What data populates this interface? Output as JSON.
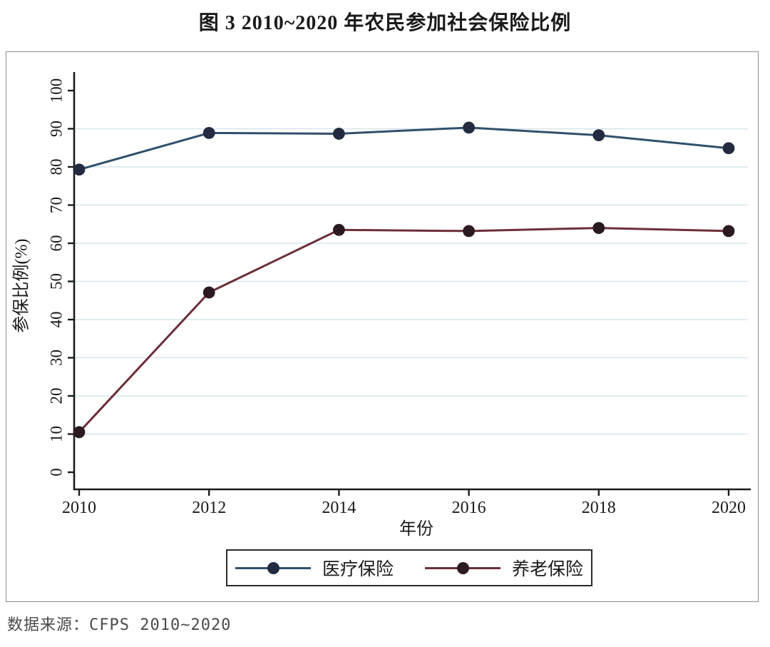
{
  "page": {
    "title": "图 3  2010~2020 年农民参加社会保险比例",
    "source_note": "数据来源：CFPS 2010~2020"
  },
  "chart_data": {
    "type": "line",
    "title": "图 3  2010~2020 年农民参加社会保险比例",
    "xlabel": "年份",
    "ylabel": "参保比例(%)",
    "x": [
      2010,
      2012,
      2014,
      2016,
      2018,
      2020
    ],
    "x_tick_labels": [
      "2010",
      "2012",
      "2014",
      "2016",
      "2018",
      "2020"
    ],
    "y_ticks": [
      0,
      10,
      20,
      30,
      40,
      50,
      60,
      70,
      80,
      90,
      100
    ],
    "grid_ticks": [
      10,
      20,
      30,
      40,
      50,
      60,
      70,
      80,
      90
    ],
    "ylim": [
      0,
      100
    ],
    "grid": "horizontal light-blue gridlines",
    "legend_position": "bottom-center boxed",
    "series": [
      {
        "name": "医疗保险",
        "values": [
          79.3,
          88.9,
          88.7,
          90.3,
          88.3,
          84.9
        ],
        "line_color": "#30506c",
        "marker_color": "#222b40"
      },
      {
        "name": "养老保险",
        "values": [
          10.5,
          47.1,
          63.5,
          63.2,
          64.0,
          63.2
        ],
        "line_color": "#6b2f39",
        "marker_color": "#2b1a21"
      }
    ],
    "colors": {
      "gridline": "#d7e6ec",
      "axis": "#1c1c1c",
      "tick_text": "#1a1a1a",
      "figure_border": "#8d8d8d",
      "source_text": "#4a4a4a"
    }
  }
}
